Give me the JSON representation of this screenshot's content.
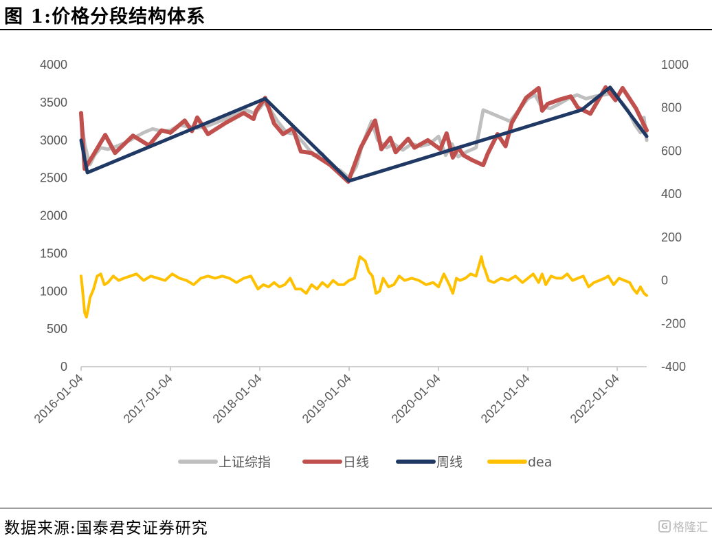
{
  "header": {
    "title": "图 1:价格分段结构体系"
  },
  "footer": {
    "source": "数据来源:国泰君安证券研究",
    "watermark": "格隆汇"
  },
  "chart_data": {
    "type": "line",
    "title": "图 1:价格分段结构体系",
    "left_axis": {
      "min": 0,
      "max": 4000,
      "ticks": [
        0,
        500,
        1000,
        1500,
        2000,
        2500,
        3000,
        3500,
        4000
      ]
    },
    "right_axis": {
      "min": -400,
      "max": 1000,
      "ticks": [
        -400,
        -200,
        0,
        200,
        400,
        600,
        800,
        1000
      ]
    },
    "x_range": [
      2016.0,
      2022.33
    ],
    "x_ticks": [
      "2016-01-04",
      "2017-01-04",
      "2018-01-04",
      "2019-01-04",
      "2020-01-04",
      "2021-01-04",
      "2022-01-04"
    ],
    "legend_position": "bottom",
    "grid": false,
    "series": [
      {
        "name": "上证综指",
        "axis": "left",
        "color": "#bfbfbf",
        "x": [
          2016.0,
          2016.04,
          2016.07,
          2016.1,
          2016.15,
          2016.22,
          2016.3,
          2016.4,
          2016.48,
          2016.55,
          2016.62,
          2016.7,
          2016.8,
          2016.9,
          2017.0,
          2017.1,
          2017.2,
          2017.3,
          2017.42,
          2017.55,
          2017.65,
          2017.75,
          2017.85,
          2017.95,
          2018.05,
          2018.12,
          2018.2,
          2018.3,
          2018.4,
          2018.5,
          2018.6,
          2018.7,
          2018.8,
          2018.9,
          2019.0,
          2019.08,
          2019.15,
          2019.25,
          2019.32,
          2019.42,
          2019.5,
          2019.6,
          2019.7,
          2019.8,
          2019.9,
          2020.0,
          2020.08,
          2020.15,
          2020.22,
          2020.32,
          2020.42,
          2020.5,
          2020.6,
          2020.7,
          2020.8,
          2020.9,
          2021.0,
          2021.08,
          2021.15,
          2021.25,
          2021.35,
          2021.45,
          2021.55,
          2021.65,
          2021.75,
          2021.85,
          2021.95,
          2022.05,
          2022.12,
          2022.2,
          2022.26,
          2022.3,
          2022.33
        ],
        "values": [
          3300,
          2950,
          2800,
          2680,
          2800,
          2900,
          2880,
          2920,
          2960,
          3000,
          3050,
          3100,
          3150,
          3120,
          3130,
          3200,
          3180,
          3160,
          3190,
          3250,
          3300,
          3350,
          3400,
          3350,
          3500,
          3400,
          3250,
          3100,
          3080,
          2950,
          2800,
          2820,
          2650,
          2600,
          2500,
          2650,
          2950,
          3250,
          3000,
          2900,
          2950,
          2870,
          2950,
          2920,
          2950,
          3050,
          2800,
          2950,
          2780,
          2850,
          2900,
          3400,
          3350,
          3300,
          3250,
          3400,
          3550,
          3600,
          3450,
          3420,
          3480,
          3550,
          3600,
          3550,
          3580,
          3600,
          3620,
          3500,
          3400,
          3200,
          3100,
          3300,
          3000
        ]
      },
      {
        "name": "日线",
        "axis": "left",
        "color": "#c0504d",
        "x": [
          2016.0,
          2016.04,
          2016.14,
          2016.27,
          2016.38,
          2016.58,
          2016.76,
          2016.9,
          2017.0,
          2017.16,
          2017.24,
          2017.3,
          2017.42,
          2017.62,
          2017.82,
          2017.93,
          2017.96,
          2018.06,
          2018.16,
          2018.26,
          2018.37,
          2018.46,
          2018.58,
          2018.79,
          2018.99,
          2019.13,
          2019.29,
          2019.36,
          2019.46,
          2019.52,
          2019.66,
          2019.73,
          2019.88,
          2020.02,
          2020.09,
          2020.16,
          2020.22,
          2020.28,
          2020.37,
          2020.5,
          2020.55,
          2020.66,
          2020.75,
          2020.82,
          2020.98,
          2021.0,
          2021.12,
          2021.16,
          2021.22,
          2021.36,
          2021.48,
          2021.56,
          2021.7,
          2021.87,
          2021.98,
          2022.06,
          2022.21,
          2022.33
        ],
        "values": [
          3360,
          2620,
          2810,
          3070,
          2830,
          3060,
          2930,
          3130,
          3100,
          3260,
          3120,
          3300,
          3080,
          3230,
          3360,
          3280,
          3390,
          3560,
          3220,
          3080,
          3160,
          2850,
          2830,
          2670,
          2450,
          2900,
          3260,
          2880,
          3030,
          2840,
          3020,
          2900,
          3000,
          2880,
          3090,
          2770,
          2900,
          2800,
          2740,
          2670,
          2820,
          3080,
          2920,
          3230,
          3560,
          3580,
          3690,
          3390,
          3480,
          3540,
          3580,
          3430,
          3350,
          3700,
          3530,
          3690,
          3420,
          3130
        ]
      },
      {
        "name": "周线",
        "axis": "left",
        "color": "#1f3864",
        "x": [
          2016.0,
          2016.07,
          2018.06,
          2019.0,
          2021.6,
          2021.92,
          2022.33
        ],
        "values": [
          3000,
          2570,
          3550,
          2460,
          3400,
          3700,
          3050
        ]
      },
      {
        "name": "dea",
        "axis": "right",
        "color": "#ffc000",
        "x": [
          2016.0,
          2016.02,
          2016.04,
          2016.06,
          2016.08,
          2016.1,
          2016.14,
          2016.18,
          2016.22,
          2016.26,
          2016.3,
          2016.36,
          2016.42,
          2016.48,
          2016.55,
          2016.62,
          2016.7,
          2016.78,
          2016.86,
          2016.94,
          2017.02,
          2017.1,
          2017.18,
          2017.26,
          2017.34,
          2017.42,
          2017.5,
          2017.58,
          2017.66,
          2017.74,
          2017.82,
          2017.9,
          2017.98,
          2018.04,
          2018.1,
          2018.16,
          2018.22,
          2018.28,
          2018.34,
          2018.4,
          2018.46,
          2018.52,
          2018.58,
          2018.64,
          2018.7,
          2018.76,
          2018.82,
          2018.88,
          2018.94,
          2019.0,
          2019.06,
          2019.12,
          2019.18,
          2019.22,
          2019.26,
          2019.3,
          2019.34,
          2019.38,
          2019.44,
          2019.5,
          2019.56,
          2019.62,
          2019.7,
          2019.78,
          2019.86,
          2019.94,
          2020.0,
          2020.06,
          2020.12,
          2020.16,
          2020.2,
          2020.24,
          2020.3,
          2020.36,
          2020.42,
          2020.48,
          2020.5,
          2020.52,
          2020.56,
          2020.62,
          2020.7,
          2020.78,
          2020.86,
          2020.94,
          2021.0,
          2021.06,
          2021.12,
          2021.16,
          2021.2,
          2021.26,
          2021.32,
          2021.38,
          2021.44,
          2021.5,
          2021.56,
          2021.62,
          2021.68,
          2021.74,
          2021.8,
          2021.86,
          2021.9,
          2021.96,
          2022.02,
          2022.08,
          2022.14,
          2022.18,
          2022.22,
          2022.26,
          2022.3,
          2022.33
        ],
        "values": [
          20,
          -60,
          -150,
          -170,
          -130,
          -80,
          -40,
          20,
          30,
          -20,
          -10,
          20,
          0,
          10,
          20,
          30,
          0,
          20,
          10,
          0,
          30,
          10,
          0,
          -20,
          10,
          20,
          10,
          20,
          10,
          -10,
          10,
          20,
          -40,
          -20,
          -30,
          -10,
          -30,
          -20,
          10,
          -40,
          -40,
          -60,
          -20,
          -40,
          -10,
          -30,
          0,
          -20,
          -20,
          0,
          10,
          110,
          90,
          40,
          20,
          -60,
          -50,
          10,
          -30,
          -20,
          20,
          0,
          10,
          0,
          -20,
          -10,
          -30,
          30,
          -20,
          -60,
          10,
          0,
          10,
          30,
          20,
          110,
          70,
          50,
          0,
          -10,
          10,
          0,
          20,
          -10,
          10,
          30,
          -10,
          30,
          -20,
          20,
          10,
          10,
          30,
          0,
          10,
          20,
          -30,
          -10,
          0,
          10,
          20,
          -20,
          10,
          0,
          -10,
          -40,
          -60,
          -30,
          -60,
          -70
        ]
      }
    ]
  }
}
